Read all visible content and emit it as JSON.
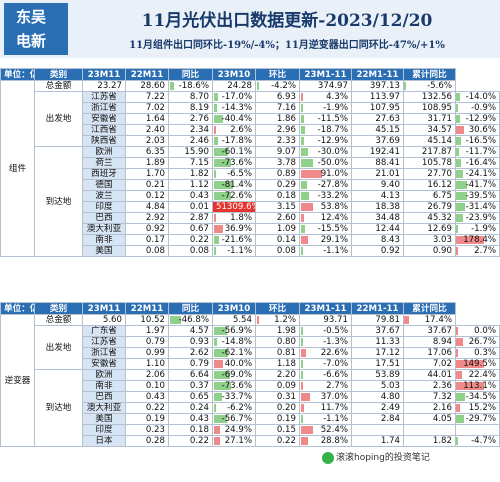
{
  "logo": [
    "东吴",
    "电新"
  ],
  "title": "11月光伏出口数据更新-2023/12/20",
  "subtitle": "11月组件出口同环比-19%/-4%；11月逆变器出口同环比-47%/+1%",
  "headers_module": [
    "单位：亿美元",
    "类别",
    "23M11",
    "22M11",
    "同比",
    "23M10",
    "环比",
    "23M1-11",
    "22M1-11",
    "累计同比"
  ],
  "headers_inverter": [
    "单位：亿美元",
    "类别",
    "23M11",
    "22M11",
    "同比",
    "23M10",
    "环比",
    "23M1-11",
    "22M1-11",
    "累计同比"
  ],
  "module": {
    "group_label": "组件",
    "total": [
      "总金额",
      "23.27",
      "28.60",
      "-18.6%",
      "24.28",
      "-4.2%",
      "374.97",
      "397.13",
      "-5.6%"
    ],
    "origin_label": "出发地",
    "origin": [
      [
        "江苏省",
        "7.22",
        "8.70",
        "-17.0%",
        "6.93",
        "4.3%",
        "113.97",
        "132.56",
        "-14.0%"
      ],
      [
        "浙江省",
        "7.02",
        "8.19",
        "-14.3%",
        "7.16",
        "-1.9%",
        "107.95",
        "108.95",
        "-0.9%"
      ],
      [
        "安徽省",
        "1.64",
        "2.76",
        "-40.4%",
        "1.86",
        "-11.5%",
        "27.63",
        "31.71",
        "-12.9%"
      ],
      [
        "江西省",
        "2.40",
        "2.34",
        "2.6%",
        "2.96",
        "-18.7%",
        "45.15",
        "34.57",
        "30.6%"
      ],
      [
        "陕西省",
        "2.03",
        "2.46",
        "-17.8%",
        "2.33",
        "-12.9%",
        "37.69",
        "45.14",
        "-16.5%"
      ]
    ],
    "dest_label": "到达地",
    "dest": [
      [
        "欧洲",
        "6.35",
        "15.90",
        "-60.1%",
        "9.07",
        "-30.0%",
        "192.41",
        "217.87",
        "-11.7%"
      ],
      [
        "荷兰",
        "1.89",
        "7.15",
        "-73.6%",
        "3.78",
        "-50.0%",
        "88.41",
        "105.78",
        "-16.4%"
      ],
      [
        "西班牙",
        "1.70",
        "1.82",
        "-6.5%",
        "0.89",
        "91.0%",
        "21.01",
        "27.70",
        "-24.1%"
      ],
      [
        "德国",
        "0.21",
        "1.12",
        "-81.4%",
        "0.29",
        "-27.8%",
        "9.40",
        "16.12",
        "-41.7%"
      ],
      [
        "波兰",
        "0.12",
        "0.43",
        "-72.6%",
        "0.18",
        "-33.2%",
        "4.13",
        "6.75",
        "-39.5%"
      ],
      [
        "印度",
        "4.84",
        "0.01",
        "51309.6%",
        "3.15",
        "53.8%",
        "18.38",
        "26.79",
        "-31.4%"
      ],
      [
        "巴西",
        "2.92",
        "2.87",
        "1.8%",
        "2.60",
        "12.4%",
        "34.48",
        "45.32",
        "-23.9%"
      ],
      [
        "澳大利亚",
        "0.92",
        "0.67",
        "36.9%",
        "1.09",
        "-15.5%",
        "12.44",
        "12.69",
        "-1.9%"
      ],
      [
        "南非",
        "0.17",
        "0.22",
        "-21.6%",
        "0.14",
        "29.1%",
        "8.43",
        "3.03",
        "178.4%"
      ],
      [
        "美国",
        "0.08",
        "0.08",
        "-1.1%",
        "0.08",
        "-1.1%",
        "0.92",
        "0.90",
        "2.7%"
      ]
    ]
  },
  "inverter": {
    "group_label": "逆变器",
    "total": [
      "总金额",
      "5.60",
      "10.52",
      "-46.8%",
      "5.54",
      "1.2%",
      "93.71",
      "79.81",
      "17.4%"
    ],
    "origin_label": "出发地",
    "origin": [
      [
        "广东省",
        "1.97",
        "4.57",
        "-56.9%",
        "1.98",
        "-0.5%",
        "37.67",
        "37.67",
        "0.0%"
      ],
      [
        "江苏省",
        "0.79",
        "0.93",
        "-14.8%",
        "0.80",
        "-1.3%",
        "11.33",
        "8.94",
        "26.7%"
      ],
      [
        "浙江省",
        "0.99",
        "2.62",
        "-62.1%",
        "0.81",
        "22.6%",
        "17.12",
        "17.06",
        "0.3%"
      ],
      [
        "安徽省",
        "1.10",
        "0.79",
        "40.0%",
        "1.18",
        "-7.0%",
        "17.51",
        "7.02",
        "149.5%"
      ]
    ],
    "dest_label": "到达地",
    "dest": [
      [
        "欧洲",
        "2.06",
        "6.64",
        "-69.0%",
        "2.20",
        "-6.6%",
        "53.89",
        "44.01",
        "22.4%"
      ],
      [
        "南非",
        "0.10",
        "0.37",
        "-73.6%",
        "0.09",
        "2.7%",
        "5.03",
        "2.36",
        "113.1%"
      ],
      [
        "巴西",
        "0.43",
        "0.65",
        "-33.7%",
        "0.31",
        "37.0%",
        "4.80",
        "7.32",
        "-34.5%"
      ],
      [
        "澳大利亚",
        "0.22",
        "0.24",
        "-6.2%",
        "0.20",
        "11.7%",
        "2.49",
        "2.16",
        "15.2%"
      ],
      [
        "美国",
        "0.19",
        "0.43",
        "-56.7%",
        "0.19",
        "-1.1%",
        "2.84",
        "4.05",
        "-29.7%"
      ],
      [
        "印度",
        "0.23",
        "0.18",
        "24.9%",
        "0.15",
        "52.4%",
        "",
        "",
        ""
      ],
      [
        "日本",
        "0.28",
        "0.22",
        "27.1%",
        "0.22",
        "28.8%",
        "1.74",
        "1.82",
        "-4.7%"
      ]
    ]
  },
  "watermark": "滚滚hoping的投资笔记",
  "colors": {
    "header_bg": "#2a6eb4",
    "bar_negative": "#8fd08a",
    "bar_positive": "#f08a8a",
    "highlight": "#e8332c"
  }
}
